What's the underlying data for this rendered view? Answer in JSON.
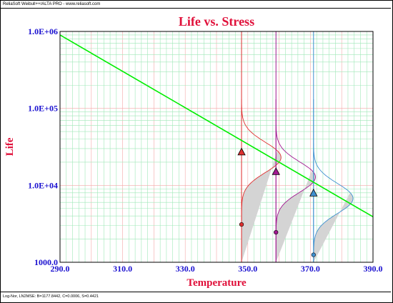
{
  "window": {
    "header_text": "ReliaSoft Weibull++/ALTA PRO - www.reliasoft.com",
    "footer_text": "Log-Nor, LN2MSE: B=1177.8442, C=0.0006, S=0.4421"
  },
  "colors": {
    "title": "#e0103a",
    "tick_text": "#1a10d0",
    "fit_line": "#00ee00",
    "grid_major_v": "#f4a8a8",
    "grid_minor": "#9fe8b8",
    "pdf_350": "#e03030",
    "pdf_360": "#a01890",
    "pdf_372": "#4090d0",
    "pdf_fill": "#d4d4d4"
  },
  "chart_data": {
    "type": "scatter",
    "title": "Life vs. Stress",
    "xlabel": "Temperature",
    "ylabel": "Life",
    "xlim": [
      290,
      390
    ],
    "ylim": [
      1000,
      1000000
    ],
    "y_scale": "log",
    "x_ticks": [
      "290.0",
      "310.0",
      "330.0",
      "350.0",
      "370.0",
      "390.0"
    ],
    "y_ticks": [
      "1000.0",
      "1.0E+04",
      "1.0E+05",
      "1.0E+06"
    ],
    "grid": true,
    "fit_line": {
      "x": [
        290,
        390
      ],
      "y": [
        900000,
        3900
      ]
    },
    "stress_levels": [
      {
        "name": "348",
        "x": 348,
        "life": 27000,
        "color_key": "pdf_350",
        "marker": "triangle",
        "failure_point": 3100
      },
      {
        "name": "359",
        "x": 359,
        "life": 15000,
        "color_key": "pdf_360",
        "marker": "triangle",
        "failure_point": 2450
      },
      {
        "name": "371",
        "x": 371,
        "life": 7900,
        "color_key": "pdf_372",
        "marker": "triangle",
        "failure_point": 1250
      }
    ]
  }
}
